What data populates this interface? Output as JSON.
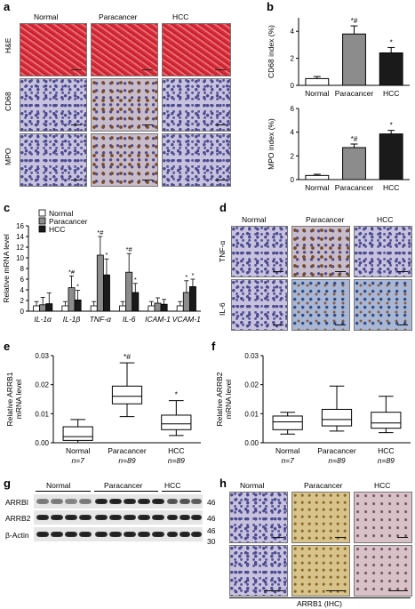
{
  "panels": {
    "a": {
      "label": "a",
      "columns": [
        "Normal",
        "Paracancer",
        "HCC"
      ],
      "rows": [
        "H&E",
        "CD68",
        "MPO"
      ]
    },
    "b": {
      "label": "b"
    },
    "c": {
      "label": "c"
    },
    "d": {
      "label": "d",
      "columns": [
        "Normal",
        "Paracancer",
        "HCC"
      ],
      "rows": [
        "TNF-α",
        "IL-6"
      ]
    },
    "e": {
      "label": "e"
    },
    "f": {
      "label": "f"
    },
    "g": {
      "label": "g",
      "groups": [
        "Normal",
        "Paracancer",
        "HCC"
      ],
      "rows": [
        {
          "name": "ARRBI",
          "mw": "46"
        },
        {
          "name": "ARRB2",
          "mw": "46"
        },
        {
          "name": "β-Actin",
          "mw": "46"
        }
      ],
      "extra_mw": "30"
    },
    "h": {
      "label": "h",
      "columns": [
        "Normal",
        "Paracancer",
        "HCC"
      ],
      "caption": "ARRB1 (IHC)"
    }
  },
  "chart_data": [
    {
      "id": "b-top",
      "type": "bar",
      "categories": [
        "Normal",
        "Paracancer",
        "HCC"
      ],
      "values": [
        0.5,
        3.8,
        2.4
      ],
      "errors": [
        0.15,
        0.6,
        0.4
      ],
      "colors": [
        "#ffffff",
        "#8c8c8c",
        "#1a1a1a"
      ],
      "annotations": [
        "",
        "*#",
        "*"
      ],
      "ylabel": "CD68 index (%)",
      "yticks": [
        0,
        2,
        4
      ],
      "ylim": [
        0,
        5
      ]
    },
    {
      "id": "b-bottom",
      "type": "bar",
      "categories": [
        "Normal",
        "Paracancer",
        "HCC"
      ],
      "values": [
        0.35,
        2.7,
        3.85
      ],
      "errors": [
        0.1,
        0.3,
        0.3
      ],
      "colors": [
        "#ffffff",
        "#8c8c8c",
        "#1a1a1a"
      ],
      "annotations": [
        "",
        "*#",
        "*"
      ],
      "ylabel": "MPO index (%)",
      "yticks": [
        0,
        2,
        4,
        6
      ],
      "ylim": [
        0,
        6
      ]
    },
    {
      "id": "c",
      "type": "bar",
      "categories": [
        "IL-1α",
        "IL-1β",
        "TNF-α",
        "IL-6",
        "ICAM-1",
        "VCAM-1"
      ],
      "series": [
        {
          "name": "Normal",
          "color": "#ffffff",
          "values": [
            1,
            1,
            1,
            1,
            1,
            1
          ],
          "errors": [
            0.8,
            0.8,
            0.8,
            0.8,
            0.8,
            0.8
          ],
          "annotations": [
            "",
            "",
            "",
            "",
            "",
            ""
          ]
        },
        {
          "name": "Paracancer",
          "color": "#8c8c8c",
          "values": [
            1.2,
            4.4,
            10.5,
            7.3,
            1.5,
            3.5
          ],
          "errors": [
            1.4,
            2.2,
            3.5,
            3.5,
            1.0,
            2.2
          ],
          "annotations": [
            "",
            "*#",
            "*#",
            "*#",
            "",
            "*"
          ]
        },
        {
          "name": "HCC",
          "color": "#1a1a1a",
          "values": [
            1.4,
            2.1,
            6.8,
            3.5,
            1.3,
            4.6
          ],
          "errors": [
            2.0,
            1.8,
            3.0,
            1.7,
            0.9,
            1.4
          ],
          "annotations": [
            "",
            "*",
            "*",
            "*",
            "",
            "*"
          ]
        }
      ],
      "ylabel": "Relative mRNA level",
      "yticks": [
        0,
        2,
        4,
        6,
        8,
        10,
        12,
        14,
        16
      ],
      "ylim": [
        0,
        16
      ]
    },
    {
      "id": "e",
      "type": "box",
      "categories": [
        "Normal",
        "Paracancer",
        "HCC"
      ],
      "n_labels": [
        "n=7",
        "n=89",
        "n=89"
      ],
      "boxes": [
        {
          "min": 0.0,
          "q1": 0.0008,
          "median": 0.0021,
          "q3": 0.0055,
          "max": 0.008
        },
        {
          "min": 0.009,
          "q1": 0.0134,
          "median": 0.016,
          "q3": 0.0195,
          "max": 0.0275
        },
        {
          "min": 0.0025,
          "q1": 0.0045,
          "median": 0.0065,
          "q3": 0.0095,
          "max": 0.0145
        }
      ],
      "annotations": [
        "",
        "*#",
        "*"
      ],
      "ylabel": "Relative ARRB1 mRNA level",
      "yticks": [
        0.0,
        0.01,
        0.02,
        0.03
      ],
      "ytick_labels": [
        "0.00",
        "0.01",
        "0.02",
        "0.03"
      ],
      "ylim": [
        0,
        0.03
      ]
    },
    {
      "id": "f",
      "type": "box",
      "categories": [
        "Normal",
        "Paracancer",
        "HCC"
      ],
      "n_labels": [
        "n=7",
        "n=89",
        "n=89"
      ],
      "boxes": [
        {
          "min": 0.003,
          "q1": 0.0045,
          "median": 0.0072,
          "q3": 0.0092,
          "max": 0.0105
        },
        {
          "min": 0.004,
          "q1": 0.0058,
          "median": 0.008,
          "q3": 0.0115,
          "max": 0.0195
        },
        {
          "min": 0.0035,
          "q1": 0.005,
          "median": 0.0068,
          "q3": 0.0105,
          "max": 0.016
        }
      ],
      "annotations": [
        "",
        "",
        ""
      ],
      "ylabel": "Relative ARRB2 mRNA level",
      "yticks": [
        0.0,
        0.01,
        0.02,
        0.03
      ],
      "ytick_labels": [
        "0.00",
        "0.01",
        "0.02",
        "0.03"
      ],
      "ylim": [
        0,
        0.03
      ]
    }
  ]
}
